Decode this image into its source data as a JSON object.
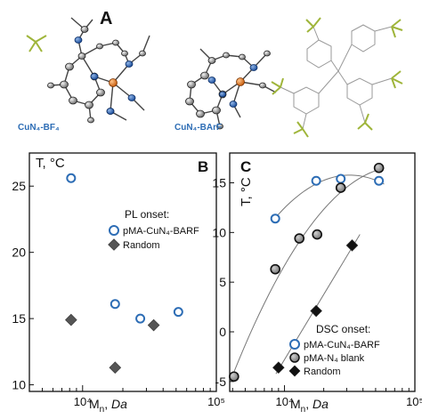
{
  "panel_a": {
    "letter": "A",
    "caption_left": "CuN₄-BF₄",
    "caption_right": "CuN₄-BArF"
  },
  "chart_data": [
    {
      "panel": "B",
      "type": "scatter",
      "y_axis_label": "T, °C",
      "x_axis_label_parts": [
        "M",
        "n",
        ", ",
        "Da"
      ],
      "x_scale": "log",
      "xlim": [
        4000,
        100000
      ],
      "ylim": [
        9.5,
        27.5
      ],
      "y_ticks": [
        10,
        15,
        20,
        25
      ],
      "x_tick_labels": [
        {
          "value": 10000,
          "label": "10⁴"
        },
        {
          "value": 100000,
          "label": "10⁵"
        }
      ],
      "legend": {
        "title": "PL onset:",
        "placement": "center-right"
      },
      "series": [
        {
          "name": "pMA-CuN₄-BARF",
          "marker": "open-circle",
          "color": "#2d6db5",
          "points": [
            [
              8200,
              25.6
            ],
            [
              17500,
              16.1
            ],
            [
              27000,
              15.0
            ],
            [
              52000,
              15.5
            ]
          ]
        },
        {
          "name": "Random",
          "marker": "diamond",
          "color": "#555555",
          "points": [
            [
              8200,
              14.9
            ],
            [
              17500,
              11.3
            ],
            [
              34000,
              14.5
            ]
          ]
        }
      ]
    },
    {
      "panel": "C",
      "type": "scatter",
      "y_axis_label": "T, °C",
      "x_axis_label_parts": [
        "M",
        "n",
        ", ",
        "Da"
      ],
      "x_scale": "log",
      "xlim": [
        3800,
        100000
      ],
      "ylim": [
        -6,
        18
      ],
      "y_ticks": [
        -5,
        0,
        5,
        10,
        15
      ],
      "x_tick_labels": [
        {
          "value": 10000,
          "label": "10⁴"
        },
        {
          "value": 100000,
          "label": "10⁵"
        }
      ],
      "legend": {
        "title": "DSC onset:",
        "placement": "bottom-right"
      },
      "series": [
        {
          "name": "pMA-CuN₄-BARF",
          "marker": "open-circle",
          "color": "#2d6db5",
          "points": [
            [
              8500,
              11.4
            ],
            [
              17500,
              15.2
            ],
            [
              27000,
              15.4
            ],
            [
              53000,
              15.2
            ]
          ]
        },
        {
          "name": "pMA-N₄ blank",
          "marker": "grey-circle",
          "color": "#777777",
          "points": [
            [
              4100,
              -4.5
            ],
            [
              8500,
              6.3
            ],
            [
              13000,
              9.4
            ],
            [
              17800,
              9.8
            ],
            [
              27000,
              14.5
            ],
            [
              53000,
              16.5
            ]
          ]
        },
        {
          "name": "Random",
          "marker": "diamond",
          "color": "#111111",
          "points": [
            [
              9000,
              -3.6
            ],
            [
              17500,
              2.1
            ],
            [
              33000,
              8.7
            ]
          ]
        }
      ]
    }
  ]
}
